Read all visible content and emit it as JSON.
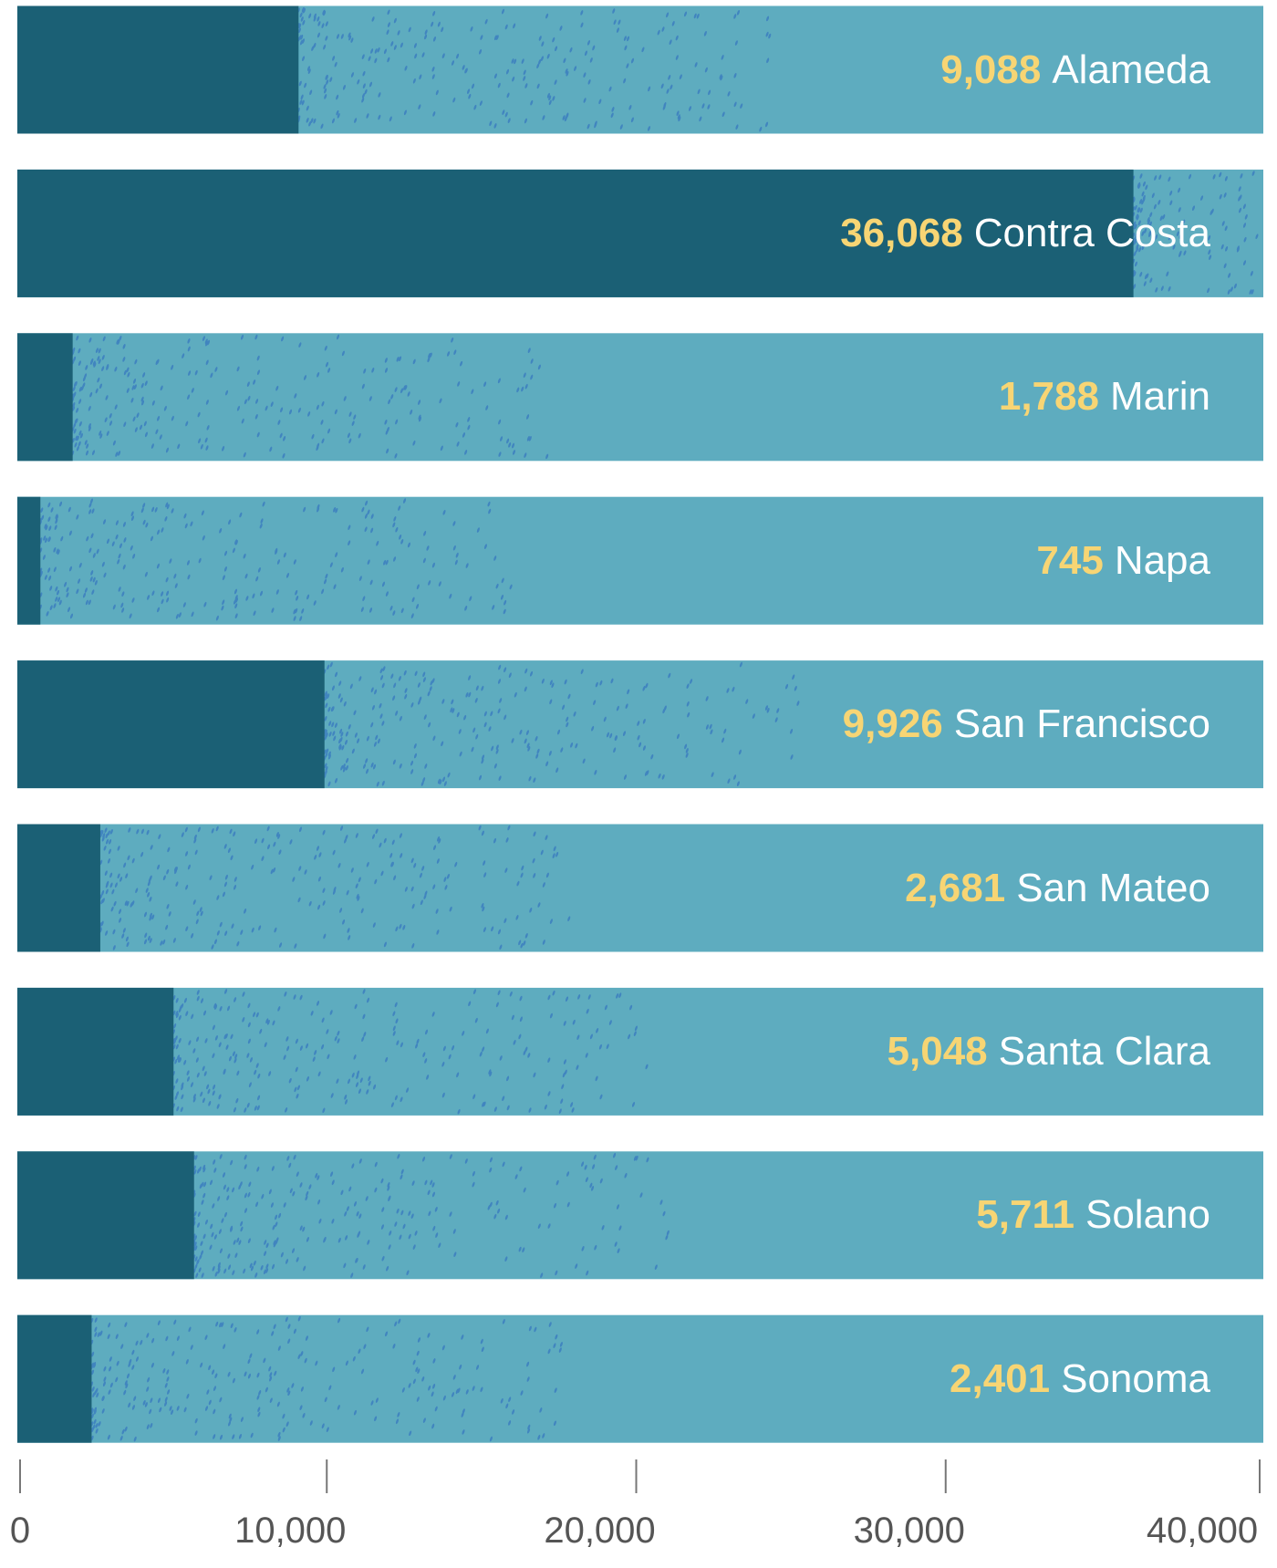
{
  "chart_data": {
    "type": "bar",
    "orientation": "horizontal",
    "categories": [
      "Alameda",
      "Contra Costa",
      "Marin",
      "Napa",
      "San Francisco",
      "San Mateo",
      "Santa Clara",
      "Solano",
      "Sonoma"
    ],
    "values": [
      9088,
      36068,
      1788,
      745,
      9926,
      2681,
      5048,
      5711,
      2401
    ],
    "value_labels": [
      "9,088",
      "36,068",
      "1,788",
      "745",
      "9,926",
      "2,681",
      "5,048",
      "5,711",
      "2,401"
    ],
    "xlim": [
      0,
      40000
    ],
    "xticks": [
      0,
      10000,
      20000,
      30000,
      40000
    ],
    "xtick_labels": [
      "0",
      "10,000",
      "20,000",
      "30,000",
      "40,000"
    ],
    "grid": false,
    "colors": {
      "bar": "#1b6075",
      "track": "#5eacbf",
      "speckle": "#3a7cc0",
      "value": "#f7d574",
      "label": "#ffffff",
      "axis": "#777777"
    }
  }
}
